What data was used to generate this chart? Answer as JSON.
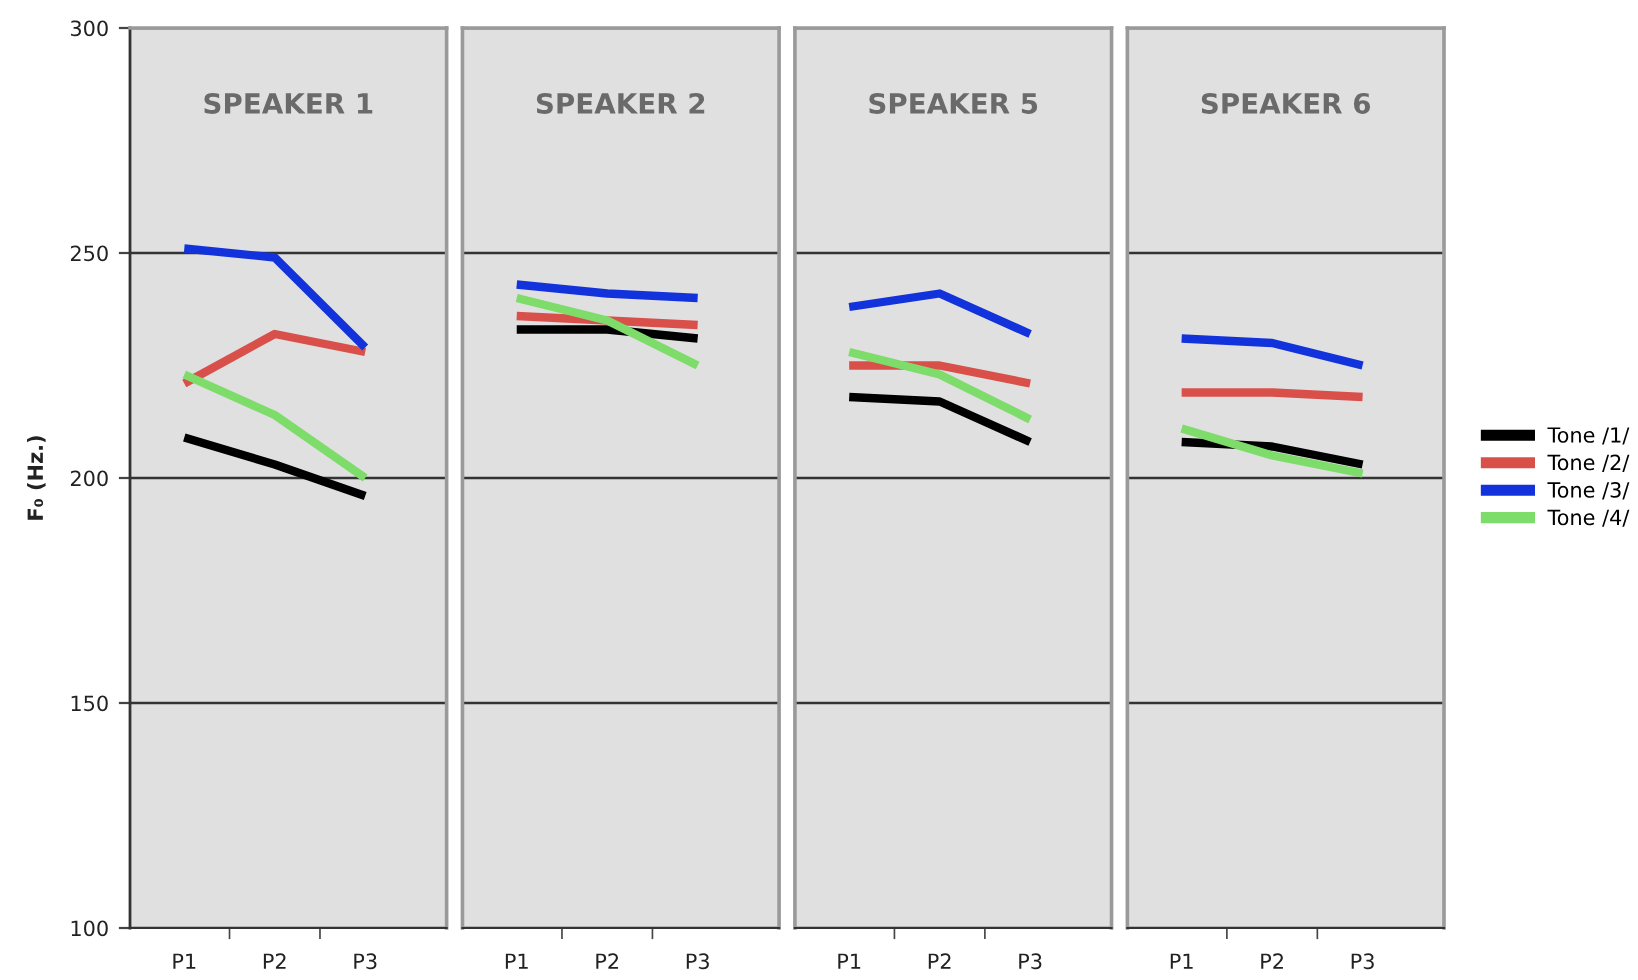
{
  "chart_data": [
    {
      "type": "line",
      "title": "SPEAKER 1",
      "ylabel": "F₀ (Hz.)",
      "categories": [
        "P1",
        "P2",
        "P3"
      ],
      "ylim": [
        100,
        300
      ],
      "yticks": [
        100,
        150,
        200,
        250,
        300
      ],
      "grid": "y",
      "line_style": "solid",
      "series": [
        {
          "color": "#000000",
          "values": [
            209,
            203,
            196
          ]
        },
        {
          "color": "#d9504a",
          "values": [
            221,
            232,
            228
          ]
        },
        {
          "color": "#1233dc",
          "values": [
            251,
            249,
            229
          ]
        },
        {
          "color": "#7ddc6a",
          "values": [
            223,
            214,
            200
          ]
        }
      ]
    },
    {
      "type": "line",
      "title": "SPEAKER 2",
      "categories": [
        "P1",
        "P2",
        "P3"
      ],
      "ylim": [
        100,
        300
      ],
      "yticks": [
        100,
        150,
        200,
        250,
        300
      ],
      "grid": "y",
      "line_style": "solid",
      "tick_labels": "x",
      "series": [
        {
          "color": "#000000",
          "values": [
            233,
            233,
            231
          ]
        },
        {
          "color": "#d9504a",
          "values": [
            236,
            235,
            234
          ]
        },
        {
          "color": "#1233dc",
          "values": [
            243,
            241,
            240
          ]
        },
        {
          "color": "#7ddc6a",
          "values": [
            240,
            235,
            225
          ]
        }
      ]
    },
    {
      "type": "line",
      "title": "SPEAKER 5",
      "categories": [
        "P1",
        "P2",
        "P3"
      ],
      "ylim": [
        100,
        300
      ],
      "yticks": [
        100,
        150,
        200,
        250,
        300
      ],
      "grid": "y",
      "line_style": "solid",
      "tick_labels": "x",
      "series": [
        {
          "color": "#000000",
          "values": [
            218,
            217,
            208
          ]
        },
        {
          "color": "#d9504a",
          "values": [
            225,
            225,
            221
          ]
        },
        {
          "color": "#1233dc",
          "values": [
            238,
            241,
            232
          ]
        },
        {
          "color": "#7ddc6a",
          "values": [
            228,
            223,
            213
          ]
        }
      ]
    },
    {
      "type": "line",
      "title": "SPEAKER 6",
      "categories": [
        "P1",
        "P2",
        "P3"
      ],
      "ylim": [
        100,
        300
      ],
      "yticks": [
        100,
        150,
        200,
        250,
        300
      ],
      "grid": "y",
      "line_style": "solid",
      "tick_labels": "x",
      "legend": "right",
      "series": [
        {
          "name": "Tone /1/",
          "color": "#000000",
          "values": [
            208,
            207,
            203
          ]
        },
        {
          "name": "Tone /2/",
          "color": "#d9504a",
          "values": [
            219,
            219,
            218
          ]
        },
        {
          "name": "Tone /3/",
          "color": "#1233dc",
          "values": [
            231,
            230,
            225
          ]
        },
        {
          "name": "Tone /4/",
          "color": "#7ddc6a",
          "values": [
            211,
            205,
            201
          ]
        }
      ]
    }
  ]
}
